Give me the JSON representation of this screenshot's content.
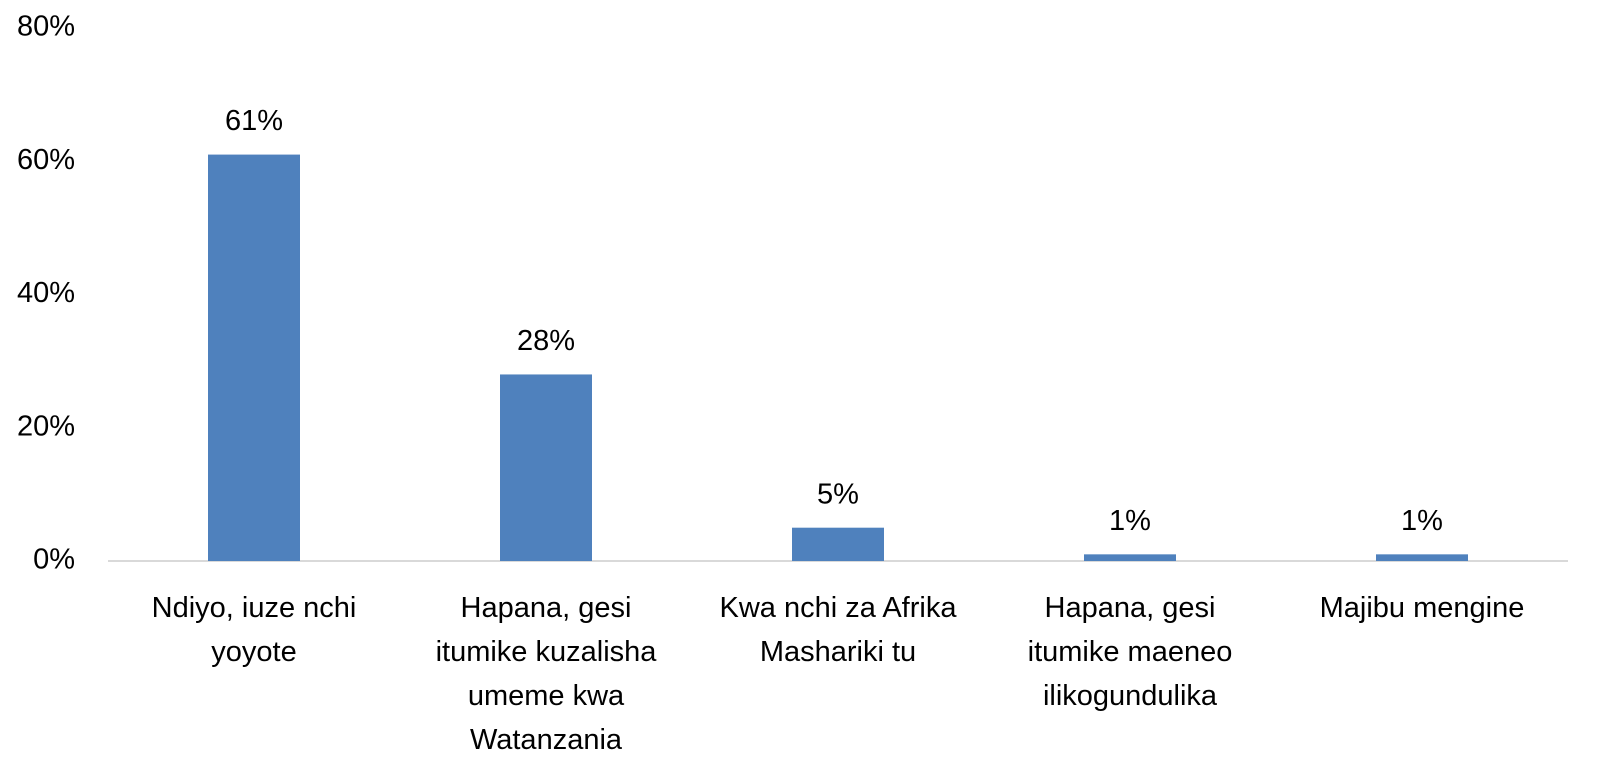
{
  "chart_data": {
    "type": "bar",
    "categories": [
      "Ndiyo, iuze nchi yoyote",
      "Hapana, gesi itumike kuzalisha umeme kwa Watanzania",
      "Kwa nchi za Afrika Mashariki tu",
      "Hapana, gesi itumike maeneo ilikogundulika",
      "Majibu mengine"
    ],
    "values": [
      61,
      28,
      5,
      1,
      1
    ],
    "value_labels": [
      "61%",
      "28%",
      "5%",
      "1%",
      "1%"
    ],
    "color": "#4f81bd",
    "ylim": [
      0,
      80
    ],
    "yticks": [
      {
        "value": 0,
        "label": "0%"
      },
      {
        "value": 20,
        "label": "20%"
      },
      {
        "value": 40,
        "label": "40%"
      },
      {
        "value": 60,
        "label": "60%"
      },
      {
        "value": 80,
        "label": "80%"
      }
    ],
    "grid": false
  }
}
